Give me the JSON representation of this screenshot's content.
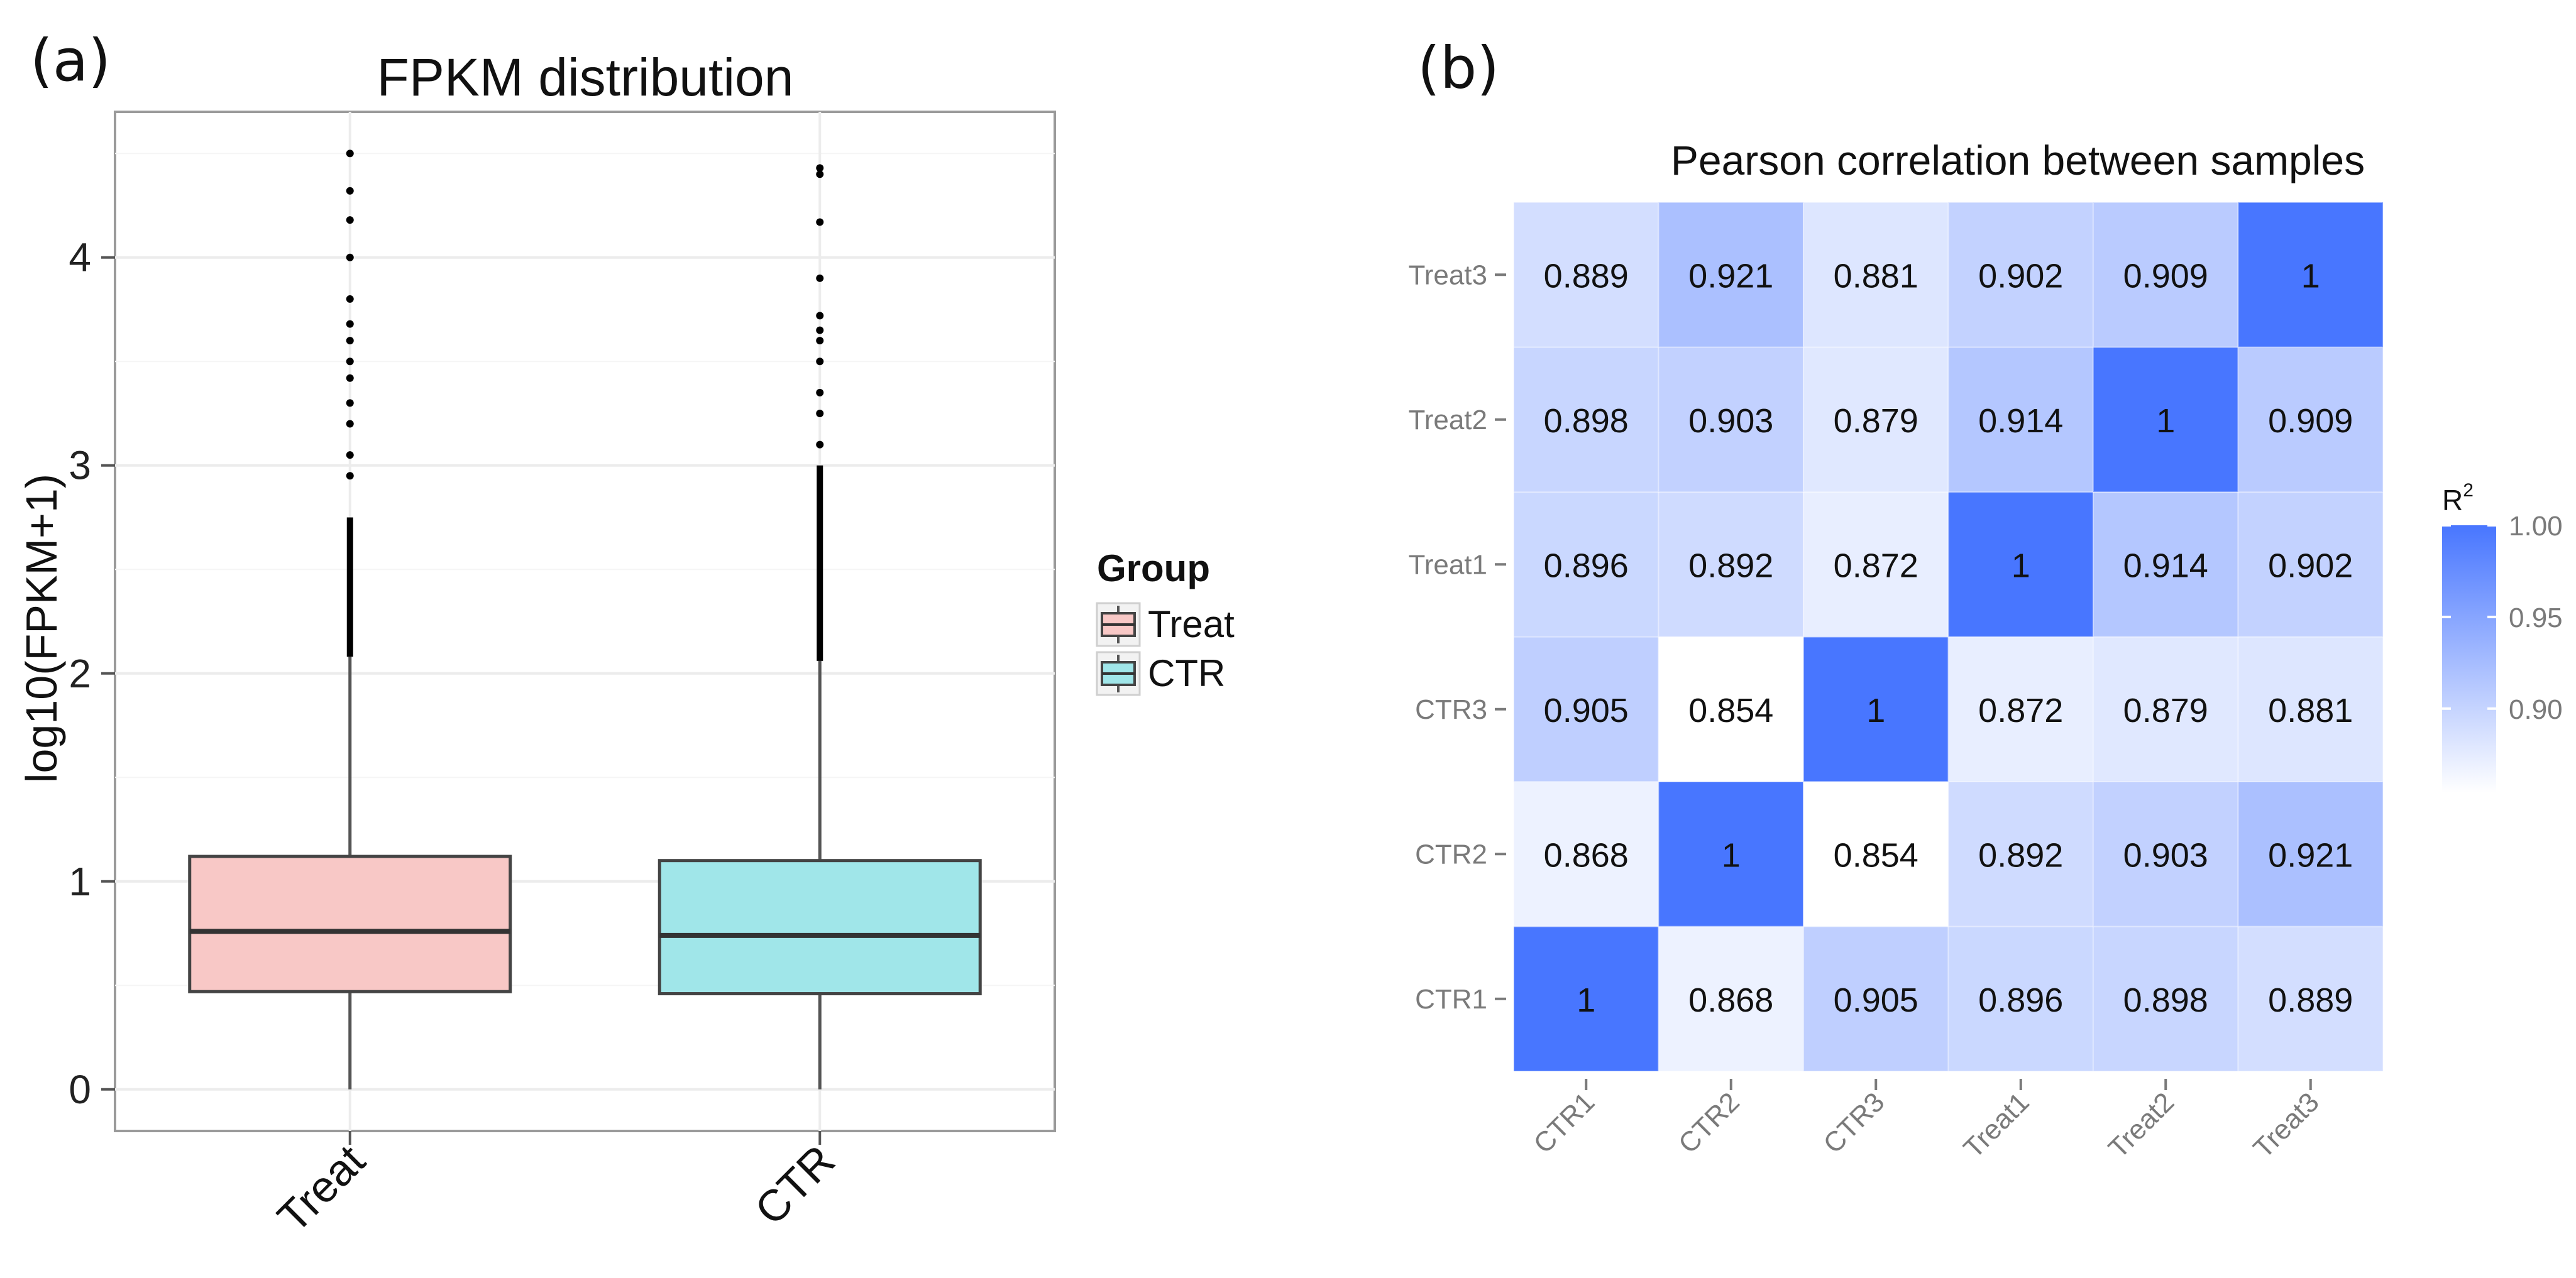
{
  "panels": {
    "a": "(a)",
    "b": "(b)"
  },
  "chart_data": [
    {
      "type": "boxplot",
      "title": "FPKM distribution",
      "xlabel": "",
      "ylabel": "log10(FPKM+1)",
      "ylim": [
        -0.2,
        4.7
      ],
      "yticks": [
        0,
        1,
        2,
        3,
        4
      ],
      "categories": [
        "Treat",
        "CTR"
      ],
      "legend": {
        "title": "Group",
        "placement": "right",
        "entries": [
          {
            "label": "Treat",
            "color": "#f8c8c6"
          },
          {
            "label": "CTR",
            "color": "#a0e6e9"
          }
        ]
      },
      "series": [
        {
          "name": "Treat",
          "color": "#f8c8c6",
          "min": 0.0,
          "q1": 0.47,
          "median": 0.76,
          "q3": 1.12,
          "whisker_high": 2.08,
          "outliers_dense_from": 2.08,
          "outliers_dense_to": 2.75,
          "outliers": [
            2.95,
            3.05,
            3.2,
            3.3,
            3.42,
            3.5,
            3.6,
            3.68,
            3.8,
            4.0,
            4.18,
            4.32,
            4.5
          ]
        },
        {
          "name": "CTR",
          "color": "#a0e6e9",
          "min": 0.0,
          "q1": 0.46,
          "median": 0.74,
          "q3": 1.1,
          "whisker_high": 2.06,
          "outliers_dense_from": 2.06,
          "outliers_dense_to": 3.0,
          "outliers": [
            3.1,
            3.25,
            3.35,
            3.5,
            3.6,
            3.65,
            3.72,
            3.9,
            4.17,
            4.4,
            4.43
          ]
        }
      ]
    },
    {
      "type": "heatmap",
      "title": "Pearson correlation between samples",
      "x_labels": [
        "CTR1",
        "CTR2",
        "CTR3",
        "Treat1",
        "Treat2",
        "Treat3"
      ],
      "y_labels": [
        "CTR1",
        "CTR2",
        "CTR3",
        "Treat1",
        "Treat2",
        "Treat3"
      ],
      "values": [
        [
          1,
          0.868,
          0.905,
          0.896,
          0.898,
          0.889
        ],
        [
          0.868,
          1,
          0.854,
          0.892,
          0.903,
          0.921
        ],
        [
          0.905,
          0.854,
          1,
          0.872,
          0.879,
          0.881
        ],
        [
          0.896,
          0.892,
          0.872,
          1,
          0.914,
          0.902
        ],
        [
          0.898,
          0.903,
          0.879,
          0.914,
          1,
          0.909
        ],
        [
          0.889,
          0.921,
          0.881,
          0.902,
          0.909,
          1
        ]
      ],
      "labels": [
        [
          "1",
          "0.868",
          "0.905",
          "0.896",
          "0.898",
          "0.889"
        ],
        [
          "0.868",
          "1",
          "0.854",
          "0.892",
          "0.903",
          "0.921"
        ],
        [
          "0.905",
          "0.854",
          "1",
          "0.872",
          "0.879",
          "0.881"
        ],
        [
          "0.896",
          "0.892",
          "0.872",
          "1",
          "0.914",
          "0.902"
        ],
        [
          "0.898",
          "0.903",
          "0.879",
          "0.914",
          "1",
          "0.909"
        ],
        [
          "0.889",
          "0.921",
          "0.881",
          "0.902",
          "0.909",
          "1"
        ]
      ],
      "color_range": [
        0.854,
        1.0
      ],
      "color_low": "#ffffff",
      "color_high": "#4876ff",
      "legend": {
        "title": "R",
        "title_superscript": "2",
        "placement": "right",
        "ticks": [
          0.9,
          0.95,
          1.0
        ],
        "tick_labels": [
          "0.90",
          "0.95",
          "1.00"
        ]
      }
    }
  ]
}
